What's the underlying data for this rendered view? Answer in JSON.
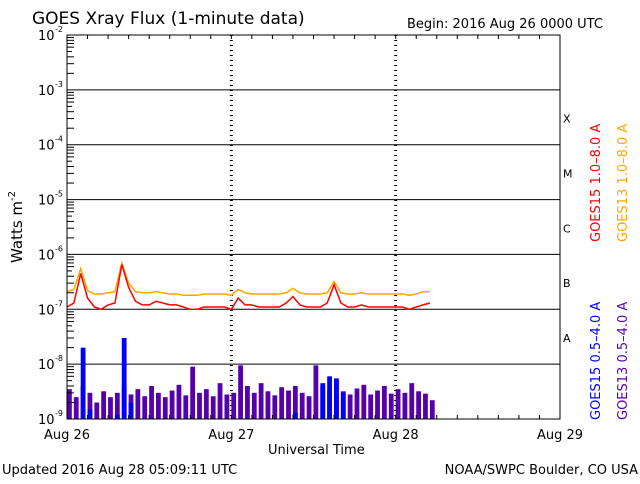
{
  "chart_data": {
    "type": "line",
    "title": "GOES Xray Flux (1-minute data)",
    "begin_label": "Begin:  2016 Aug 26 0000 UTC",
    "xlabel": "Universal Time",
    "ylabel": "Watts m",
    "ylabel_exp": "-2",
    "yscale": "log",
    "ylim": [
      1e-09,
      0.01
    ],
    "xlim_hours": [
      0,
      72
    ],
    "x_ticks": [
      {
        "hour": 0,
        "label": "Aug 26"
      },
      {
        "hour": 24,
        "label": "Aug 27"
      },
      {
        "hour": 48,
        "label": "Aug 28"
      },
      {
        "hour": 72,
        "label": "Aug 29"
      }
    ],
    "y_ticks": [
      {
        "value": 0.01,
        "base": "10",
        "exp": "-2"
      },
      {
        "value": 0.001,
        "base": "10",
        "exp": "-3"
      },
      {
        "value": 0.0001,
        "base": "10",
        "exp": "-4"
      },
      {
        "value": 1e-05,
        "base": "10",
        "exp": "-5"
      },
      {
        "value": 1e-06,
        "base": "10",
        "exp": "-6"
      },
      {
        "value": 1e-07,
        "base": "10",
        "exp": "-7"
      },
      {
        "value": 1e-08,
        "base": "10",
        "exp": "-8"
      },
      {
        "value": 1e-09,
        "base": "10",
        "exp": "-9"
      }
    ],
    "flare_classes": [
      {
        "label": "X",
        "value": 0.0003
      },
      {
        "label": "M",
        "value": 3e-05
      },
      {
        "label": "C",
        "value": 3e-06
      },
      {
        "label": "B",
        "value": 3e-07
      },
      {
        "label": "A",
        "value": 3e-08
      }
    ],
    "hours": [
      0,
      1,
      2,
      3,
      4,
      5,
      6,
      7,
      8,
      9,
      10,
      11,
      12,
      13,
      14,
      15,
      16,
      17,
      18,
      19,
      20,
      21,
      22,
      23,
      24,
      25,
      26,
      27,
      28,
      29,
      30,
      31,
      32,
      33,
      34,
      35,
      36,
      37,
      38,
      39,
      40,
      41,
      42,
      43,
      44,
      45,
      46,
      47,
      48,
      49,
      50,
      51,
      52,
      53
    ],
    "series": [
      {
        "name": "GOES15 1.0-8.0 A",
        "legend": "GOES15 1.0–8.0 A",
        "color": "#ff0000",
        "style": "line",
        "values": [
          1.1e-07,
          1.3e-07,
          4.5e-07,
          1.6e-07,
          1.1e-07,
          1e-07,
          1.2e-07,
          1.3e-07,
          6.5e-07,
          2.5e-07,
          1.4e-07,
          1.2e-07,
          1.2e-07,
          1.4e-07,
          1.3e-07,
          1.2e-07,
          1.2e-07,
          1.1e-07,
          1e-07,
          1e-07,
          1.1e-07,
          1.1e-07,
          1.1e-07,
          1.1e-07,
          1e-07,
          1.6e-07,
          1.2e-07,
          1.2e-07,
          1.1e-07,
          1.1e-07,
          1.1e-07,
          1.1e-07,
          1.3e-07,
          1.7e-07,
          1.2e-07,
          1.1e-07,
          1.1e-07,
          1.1e-07,
          1.3e-07,
          2.8e-07,
          1.3e-07,
          1.1e-07,
          1.1e-07,
          1.2e-07,
          1.1e-07,
          1.1e-07,
          1.1e-07,
          1.1e-07,
          1.1e-07,
          1.1e-07,
          1e-07,
          1.1e-07,
          1.2e-07,
          1.3e-07
        ]
      },
      {
        "name": "GOES13 1.0-8.0 A",
        "legend": "GOES13 1.0–8.0 A",
        "color": "#ffa500",
        "style": "line",
        "values": [
          2.1e-07,
          2.3e-07,
          5.5e-07,
          2.2e-07,
          1.9e-07,
          1.9e-07,
          2e-07,
          2.1e-07,
          7e-07,
          3e-07,
          2.1e-07,
          2e-07,
          2e-07,
          2.1e-07,
          2e-07,
          1.9e-07,
          1.9e-07,
          1.8e-07,
          1.8e-07,
          1.8e-07,
          1.9e-07,
          1.9e-07,
          1.9e-07,
          1.9e-07,
          1.8e-07,
          2.3e-07,
          2e-07,
          1.9e-07,
          1.9e-07,
          1.9e-07,
          1.9e-07,
          1.9e-07,
          2e-07,
          2.4e-07,
          2e-07,
          1.9e-07,
          1.9e-07,
          1.9e-07,
          2e-07,
          3.2e-07,
          2e-07,
          1.9e-07,
          1.9e-07,
          2e-07,
          1.9e-07,
          1.9e-07,
          1.9e-07,
          1.9e-07,
          1.9e-07,
          1.9e-07,
          1.8e-07,
          1.9e-07,
          2.1e-07,
          2.1e-07
        ]
      },
      {
        "name": "GOES15 0.5-4.0 A",
        "legend": "GOES15 0.5–4.0 A",
        "color": "#0000ff",
        "style": "spikes",
        "values": [
          1e-09,
          1e-09,
          2e-08,
          1.5e-09,
          1e-09,
          1e-09,
          1e-09,
          1.2e-09,
          3e-08,
          2e-09,
          1e-09,
          1e-09,
          1e-09,
          1e-09,
          1e-09,
          1e-09,
          1e-09,
          1e-09,
          1e-09,
          1e-09,
          1e-09,
          1e-09,
          1e-09,
          1e-09,
          1e-09,
          1e-09,
          1e-09,
          1e-09,
          1e-09,
          1e-09,
          1e-09,
          1e-09,
          1e-09,
          1.3e-09,
          1e-09,
          1e-09,
          1e-09,
          4.5e-09,
          6e-09,
          5.5e-09,
          3e-09,
          1e-09,
          1e-09,
          1e-09,
          1e-09,
          1e-09,
          1e-09,
          1e-09,
          1e-09,
          1e-09,
          1e-09,
          1e-09,
          1e-09,
          1e-09
        ]
      },
      {
        "name": "GOES13 0.5-4.0 A",
        "legend": "GOES13 0.5–4.0 A",
        "color": "#5500aa",
        "style": "spikes",
        "values": [
          3.5e-09,
          2.5e-09,
          4e-09,
          3e-09,
          2e-09,
          3.2e-09,
          2.5e-09,
          3e-09,
          4e-09,
          2.8e-09,
          3.5e-09,
          2.6e-09,
          4e-09,
          3e-09,
          2.5e-09,
          3.3e-09,
          4.2e-09,
          2.7e-09,
          9e-09,
          3e-09,
          3.5e-09,
          2.6e-09,
          4.5e-09,
          2.8e-09,
          3e-09,
          9.5e-09,
          4e-09,
          3e-09,
          4.5e-09,
          3.2e-09,
          2.7e-09,
          3.8e-09,
          3.3e-09,
          4e-09,
          3e-09,
          2.6e-09,
          9.5e-09,
          4e-09,
          3.5e-09,
          5e-09,
          3.2e-09,
          2.8e-09,
          3.6e-09,
          4.2e-09,
          2.8e-09,
          3.3e-09,
          4e-09,
          2.9e-09,
          3.5e-09,
          3e-09,
          4.5e-09,
          3.2e-09,
          2.9e-09,
          2.2e-09
        ]
      }
    ]
  },
  "footer": {
    "updated": "Updated 2016 Aug 28 05:09:11 UTC",
    "credit": "NOAA/SWPC Boulder, CO USA"
  }
}
